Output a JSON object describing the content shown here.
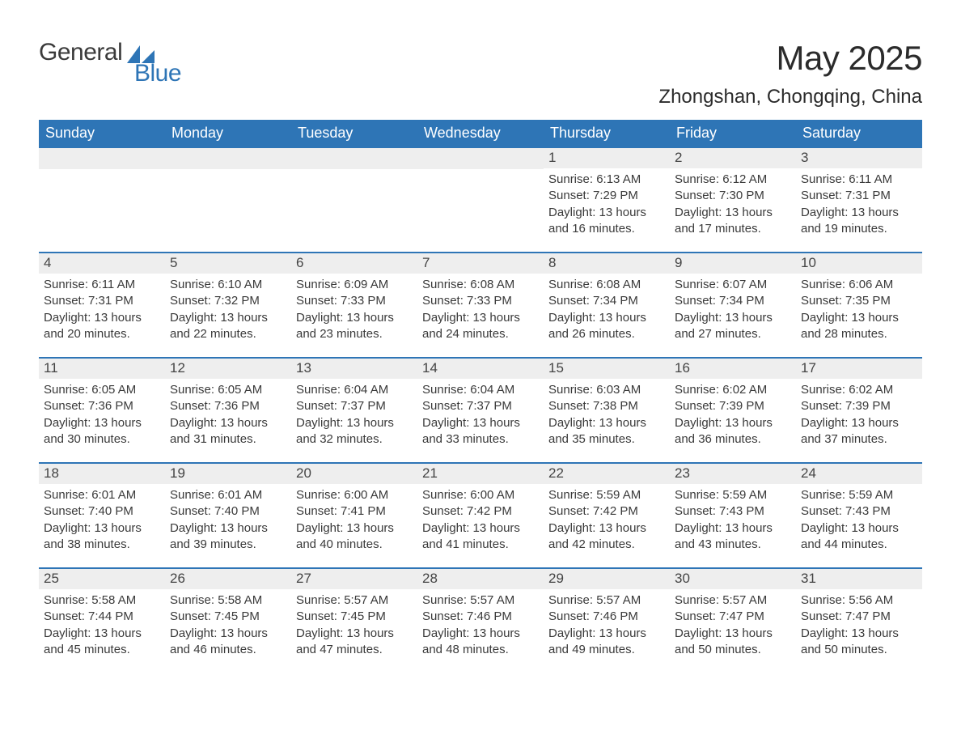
{
  "brand": {
    "word1": "General",
    "word2": "Blue",
    "text_color": "#3a3a3a",
    "accent_color": "#2e75b6"
  },
  "title": "May 2025",
  "location": "Zhongshan, Chongqing, China",
  "colors": {
    "header_bg": "#2e75b6",
    "header_text": "#ffffff",
    "daynum_bg": "#eeeeee",
    "border": "#2e75b6",
    "body_text": "#3a3a3a",
    "page_bg": "#ffffff"
  },
  "day_headers": [
    "Sunday",
    "Monday",
    "Tuesday",
    "Wednesday",
    "Thursday",
    "Friday",
    "Saturday"
  ],
  "weeks": [
    [
      {
        "n": "",
        "sunrise": "",
        "sunset": "",
        "daylight": ""
      },
      {
        "n": "",
        "sunrise": "",
        "sunset": "",
        "daylight": ""
      },
      {
        "n": "",
        "sunrise": "",
        "sunset": "",
        "daylight": ""
      },
      {
        "n": "",
        "sunrise": "",
        "sunset": "",
        "daylight": ""
      },
      {
        "n": "1",
        "sunrise": "Sunrise: 6:13 AM",
        "sunset": "Sunset: 7:29 PM",
        "daylight": "Daylight: 13 hours and 16 minutes."
      },
      {
        "n": "2",
        "sunrise": "Sunrise: 6:12 AM",
        "sunset": "Sunset: 7:30 PM",
        "daylight": "Daylight: 13 hours and 17 minutes."
      },
      {
        "n": "3",
        "sunrise": "Sunrise: 6:11 AM",
        "sunset": "Sunset: 7:31 PM",
        "daylight": "Daylight: 13 hours and 19 minutes."
      }
    ],
    [
      {
        "n": "4",
        "sunrise": "Sunrise: 6:11 AM",
        "sunset": "Sunset: 7:31 PM",
        "daylight": "Daylight: 13 hours and 20 minutes."
      },
      {
        "n": "5",
        "sunrise": "Sunrise: 6:10 AM",
        "sunset": "Sunset: 7:32 PM",
        "daylight": "Daylight: 13 hours and 22 minutes."
      },
      {
        "n": "6",
        "sunrise": "Sunrise: 6:09 AM",
        "sunset": "Sunset: 7:33 PM",
        "daylight": "Daylight: 13 hours and 23 minutes."
      },
      {
        "n": "7",
        "sunrise": "Sunrise: 6:08 AM",
        "sunset": "Sunset: 7:33 PM",
        "daylight": "Daylight: 13 hours and 24 minutes."
      },
      {
        "n": "8",
        "sunrise": "Sunrise: 6:08 AM",
        "sunset": "Sunset: 7:34 PM",
        "daylight": "Daylight: 13 hours and 26 minutes."
      },
      {
        "n": "9",
        "sunrise": "Sunrise: 6:07 AM",
        "sunset": "Sunset: 7:34 PM",
        "daylight": "Daylight: 13 hours and 27 minutes."
      },
      {
        "n": "10",
        "sunrise": "Sunrise: 6:06 AM",
        "sunset": "Sunset: 7:35 PM",
        "daylight": "Daylight: 13 hours and 28 minutes."
      }
    ],
    [
      {
        "n": "11",
        "sunrise": "Sunrise: 6:05 AM",
        "sunset": "Sunset: 7:36 PM",
        "daylight": "Daylight: 13 hours and 30 minutes."
      },
      {
        "n": "12",
        "sunrise": "Sunrise: 6:05 AM",
        "sunset": "Sunset: 7:36 PM",
        "daylight": "Daylight: 13 hours and 31 minutes."
      },
      {
        "n": "13",
        "sunrise": "Sunrise: 6:04 AM",
        "sunset": "Sunset: 7:37 PM",
        "daylight": "Daylight: 13 hours and 32 minutes."
      },
      {
        "n": "14",
        "sunrise": "Sunrise: 6:04 AM",
        "sunset": "Sunset: 7:37 PM",
        "daylight": "Daylight: 13 hours and 33 minutes."
      },
      {
        "n": "15",
        "sunrise": "Sunrise: 6:03 AM",
        "sunset": "Sunset: 7:38 PM",
        "daylight": "Daylight: 13 hours and 35 minutes."
      },
      {
        "n": "16",
        "sunrise": "Sunrise: 6:02 AM",
        "sunset": "Sunset: 7:39 PM",
        "daylight": "Daylight: 13 hours and 36 minutes."
      },
      {
        "n": "17",
        "sunrise": "Sunrise: 6:02 AM",
        "sunset": "Sunset: 7:39 PM",
        "daylight": "Daylight: 13 hours and 37 minutes."
      }
    ],
    [
      {
        "n": "18",
        "sunrise": "Sunrise: 6:01 AM",
        "sunset": "Sunset: 7:40 PM",
        "daylight": "Daylight: 13 hours and 38 minutes."
      },
      {
        "n": "19",
        "sunrise": "Sunrise: 6:01 AM",
        "sunset": "Sunset: 7:40 PM",
        "daylight": "Daylight: 13 hours and 39 minutes."
      },
      {
        "n": "20",
        "sunrise": "Sunrise: 6:00 AM",
        "sunset": "Sunset: 7:41 PM",
        "daylight": "Daylight: 13 hours and 40 minutes."
      },
      {
        "n": "21",
        "sunrise": "Sunrise: 6:00 AM",
        "sunset": "Sunset: 7:42 PM",
        "daylight": "Daylight: 13 hours and 41 minutes."
      },
      {
        "n": "22",
        "sunrise": "Sunrise: 5:59 AM",
        "sunset": "Sunset: 7:42 PM",
        "daylight": "Daylight: 13 hours and 42 minutes."
      },
      {
        "n": "23",
        "sunrise": "Sunrise: 5:59 AM",
        "sunset": "Sunset: 7:43 PM",
        "daylight": "Daylight: 13 hours and 43 minutes."
      },
      {
        "n": "24",
        "sunrise": "Sunrise: 5:59 AM",
        "sunset": "Sunset: 7:43 PM",
        "daylight": "Daylight: 13 hours and 44 minutes."
      }
    ],
    [
      {
        "n": "25",
        "sunrise": "Sunrise: 5:58 AM",
        "sunset": "Sunset: 7:44 PM",
        "daylight": "Daylight: 13 hours and 45 minutes."
      },
      {
        "n": "26",
        "sunrise": "Sunrise: 5:58 AM",
        "sunset": "Sunset: 7:45 PM",
        "daylight": "Daylight: 13 hours and 46 minutes."
      },
      {
        "n": "27",
        "sunrise": "Sunrise: 5:57 AM",
        "sunset": "Sunset: 7:45 PM",
        "daylight": "Daylight: 13 hours and 47 minutes."
      },
      {
        "n": "28",
        "sunrise": "Sunrise: 5:57 AM",
        "sunset": "Sunset: 7:46 PM",
        "daylight": "Daylight: 13 hours and 48 minutes."
      },
      {
        "n": "29",
        "sunrise": "Sunrise: 5:57 AM",
        "sunset": "Sunset: 7:46 PM",
        "daylight": "Daylight: 13 hours and 49 minutes."
      },
      {
        "n": "30",
        "sunrise": "Sunrise: 5:57 AM",
        "sunset": "Sunset: 7:47 PM",
        "daylight": "Daylight: 13 hours and 50 minutes."
      },
      {
        "n": "31",
        "sunrise": "Sunrise: 5:56 AM",
        "sunset": "Sunset: 7:47 PM",
        "daylight": "Daylight: 13 hours and 50 minutes."
      }
    ]
  ]
}
